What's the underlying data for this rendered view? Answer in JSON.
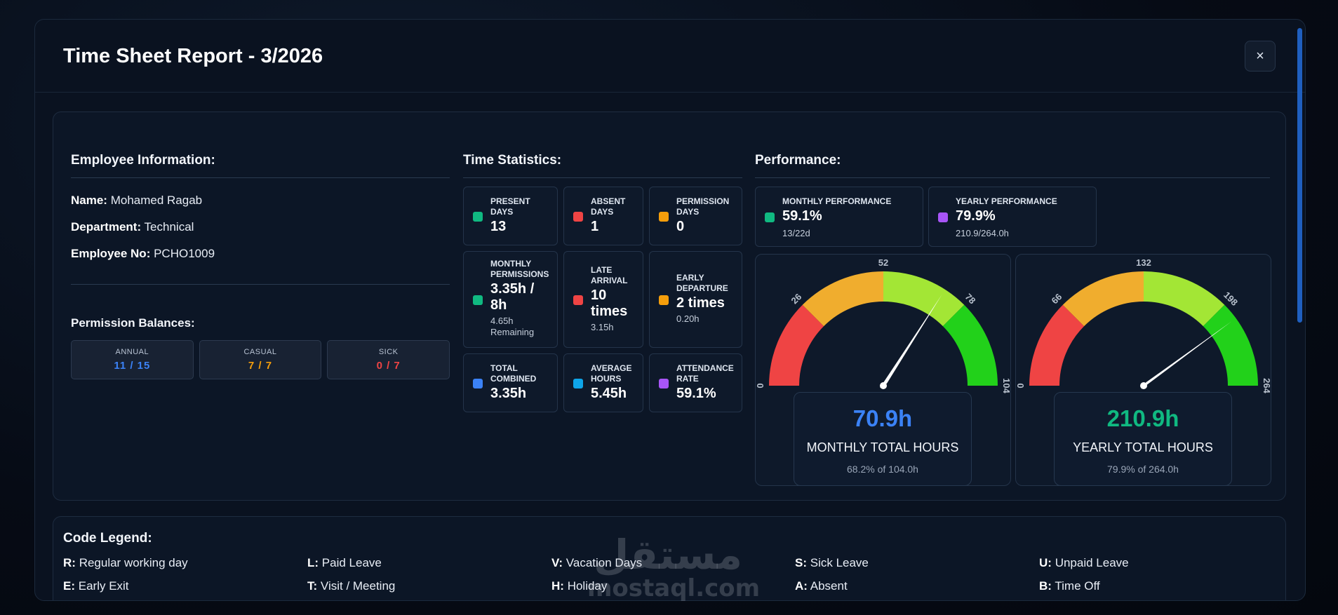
{
  "modal": {
    "title": "Time Sheet Report - 3/2026",
    "close_label": "×"
  },
  "employee": {
    "section_title": "Employee Information:",
    "name_label": "Name:",
    "name": "Mohamed Ragab",
    "department_label": "Department:",
    "department": "Technical",
    "employee_no_label": "Employee No:",
    "employee_no": "PCHO1009"
  },
  "permission_balances": {
    "title": "Permission Balances:",
    "items": [
      {
        "label": "ANNUAL",
        "value": "11 / 15",
        "color": "#3b82f6"
      },
      {
        "label": "CASUAL",
        "value": "7 / 7",
        "color": "#f59e0b"
      },
      {
        "label": "SICK",
        "value": "0 / 7",
        "color": "#ef4444"
      }
    ]
  },
  "time_statistics": {
    "title": "Time Statistics:",
    "items": [
      {
        "label": "PRESENT DAYS",
        "value": "13",
        "sub": "",
        "color": "#10b981"
      },
      {
        "label": "ABSENT DAYS",
        "value": "1",
        "sub": "",
        "color": "#ef4444"
      },
      {
        "label": "PERMISSION DAYS",
        "value": "0",
        "sub": "",
        "color": "#f59e0b"
      },
      {
        "label": "MONTHLY PERMISSIONS",
        "value": "3.35h / 8h",
        "sub": "4.65h Remaining",
        "color": "#10b981"
      },
      {
        "label": "LATE ARRIVAL",
        "value": "10 times",
        "sub": "3.15h",
        "color": "#ef4444"
      },
      {
        "label": "EARLY DEPARTURE",
        "value": "2 times",
        "sub": "0.20h",
        "color": "#f59e0b"
      },
      {
        "label": "TOTAL COMBINED",
        "value": "3.35h",
        "sub": "",
        "color": "#3b82f6"
      },
      {
        "label": "AVERAGE HOURS",
        "value": "5.45h",
        "sub": "",
        "color": "#0ea5e9"
      },
      {
        "label": "ATTENDANCE RATE",
        "value": "59.1%",
        "sub": "",
        "color": "#a855f7"
      }
    ]
  },
  "performance": {
    "title": "Performance:",
    "cards": [
      {
        "label": "MONTHLY PERFORMANCE",
        "value": "59.1%",
        "sub": "13/22d",
        "color": "#10b981"
      },
      {
        "label": "YEARLY PERFORMANCE",
        "value": "79.9%",
        "sub": "210.9/264.0h",
        "color": "#a855f7"
      }
    ],
    "gauges": [
      {
        "value_text": "70.9h",
        "label": "MONTHLY TOTAL HOURS",
        "sub": "68.2% of 104.0h",
        "value": 70.9,
        "max": 104,
        "ticks": [
          "0",
          "26",
          "52",
          "78",
          "104"
        ],
        "value_color": "#3b82f6"
      },
      {
        "value_text": "210.9h",
        "label": "YEARLY TOTAL HOURS",
        "sub": "79.9% of 264.0h",
        "value": 210.9,
        "max": 264,
        "ticks": [
          "0",
          "66",
          "132",
          "198",
          "264"
        ],
        "value_color": "#10b981"
      }
    ],
    "segment_colors": [
      "#ef4444",
      "#f0ad2e",
      "#a3e635",
      "#22d11a"
    ]
  },
  "legend": {
    "title": "Code Legend:",
    "items": [
      {
        "code": "R:",
        "text": "Regular working day"
      },
      {
        "code": "L:",
        "text": "Paid Leave"
      },
      {
        "code": "V:",
        "text": "Vacation Days"
      },
      {
        "code": "S:",
        "text": "Sick Leave"
      },
      {
        "code": "U:",
        "text": "Unpaid Leave"
      },
      {
        "code": "E:",
        "text": "Early Exit"
      },
      {
        "code": "T:",
        "text": "Visit / Meeting"
      },
      {
        "code": "H:",
        "text": "Holiday"
      },
      {
        "code": "A:",
        "text": "Absent"
      },
      {
        "code": "B:",
        "text": "Time Off"
      }
    ]
  },
  "watermark": {
    "arabic": "مستقل",
    "latin": "mostaql.com"
  }
}
